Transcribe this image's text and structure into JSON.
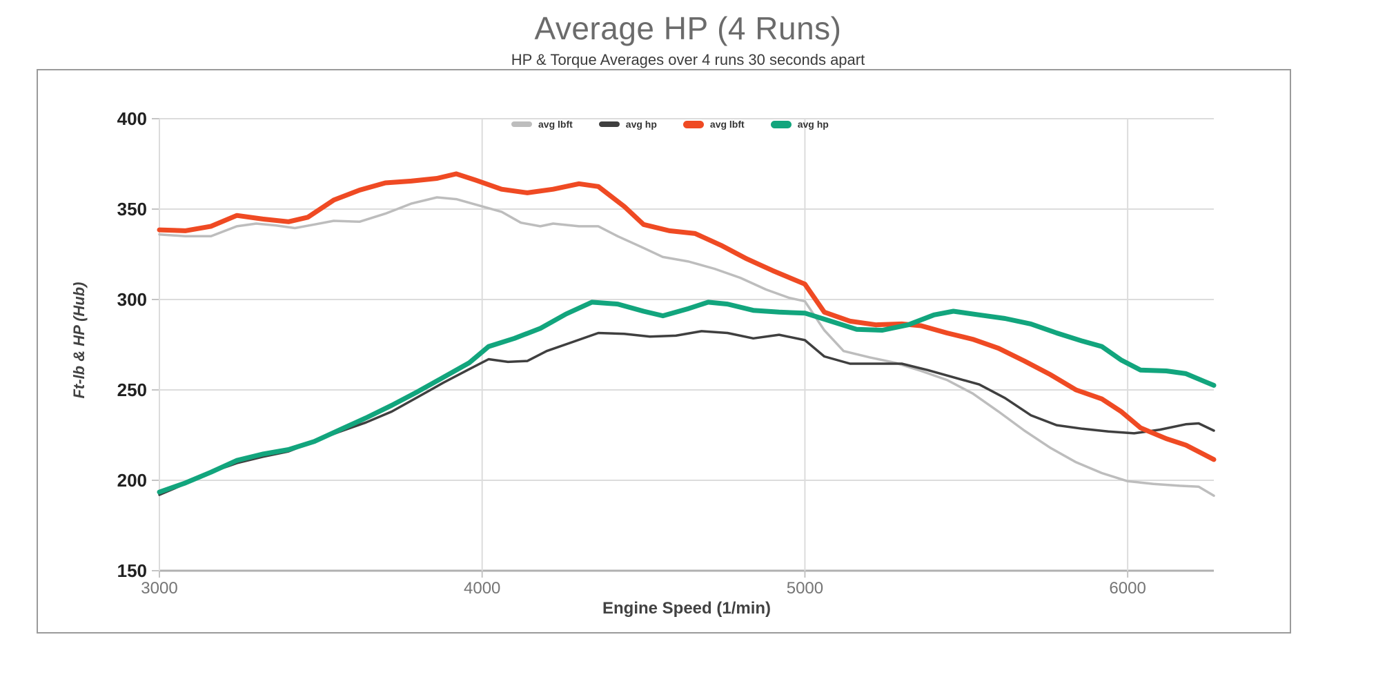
{
  "page": {
    "background": "#ffffff"
  },
  "styles": {
    "title_color": "#6b6b6b",
    "subtitle_color": "#3b3b3b",
    "border_color": "#9a9a9a",
    "grid_color": "#dcdcdc",
    "axis_line_color": "#b0b0b0",
    "tick_color": "#c4c4c4",
    "y_tick_label_color": "#212121",
    "x_tick_label_color": "#757575",
    "axis_title_color": "#424242",
    "legend_label_color": "#353535"
  },
  "chart_data": {
    "type": "line",
    "title": "Average HP (4 Runs)",
    "subtitle": "HP & Torque Averages over 4 runs 30 seconds apart",
    "xlabel": "Engine Speed (1/min)",
    "ylabel": "Ft-lb & HP (Hub)",
    "xlim": [
      3000,
      6267
    ],
    "ylim": [
      150,
      400
    ],
    "x_ticks": [
      3000,
      4000,
      5000,
      6000
    ],
    "y_ticks": [
      400,
      350,
      300,
      250,
      200,
      150
    ],
    "grid": true,
    "legend_position": "top-center",
    "series": [
      {
        "name": "avg lbft",
        "color": "#BDBDBD",
        "line_width": 3.5,
        "points": [
          [
            3000,
            336
          ],
          [
            3080,
            335
          ],
          [
            3160,
            335
          ],
          [
            3240,
            340.5
          ],
          [
            3300,
            342
          ],
          [
            3360,
            341
          ],
          [
            3420,
            339.5
          ],
          [
            3480,
            341.5
          ],
          [
            3540,
            343.5
          ],
          [
            3620,
            343
          ],
          [
            3700,
            347.5
          ],
          [
            3780,
            353
          ],
          [
            3860,
            356.5
          ],
          [
            3920,
            355.5
          ],
          [
            4000,
            351.5
          ],
          [
            4060,
            348.5
          ],
          [
            4120,
            342.5
          ],
          [
            4180,
            340.5
          ],
          [
            4220,
            342
          ],
          [
            4300,
            340.5
          ],
          [
            4360,
            340.5
          ],
          [
            4420,
            335
          ],
          [
            4500,
            328.5
          ],
          [
            4560,
            323.5
          ],
          [
            4640,
            321
          ],
          [
            4720,
            317
          ],
          [
            4800,
            312
          ],
          [
            4880,
            305.5
          ],
          [
            4950,
            301
          ],
          [
            5000,
            299
          ],
          [
            5060,
            283
          ],
          [
            5120,
            271.5
          ],
          [
            5200,
            268
          ],
          [
            5280,
            265
          ],
          [
            5360,
            260.5
          ],
          [
            5440,
            255.5
          ],
          [
            5520,
            248
          ],
          [
            5600,
            238
          ],
          [
            5680,
            227.5
          ],
          [
            5760,
            218
          ],
          [
            5840,
            210
          ],
          [
            5920,
            204
          ],
          [
            6000,
            199.5
          ],
          [
            6080,
            198
          ],
          [
            6160,
            197
          ],
          [
            6220,
            196.5
          ],
          [
            6267,
            191.5
          ]
        ]
      },
      {
        "name": "avg hp",
        "color": "#3F3F3F",
        "line_width": 3.5,
        "points": [
          [
            3000,
            192
          ],
          [
            3080,
            198
          ],
          [
            3160,
            204.5
          ],
          [
            3240,
            209.5
          ],
          [
            3320,
            213
          ],
          [
            3400,
            216
          ],
          [
            3480,
            221.5
          ],
          [
            3560,
            227
          ],
          [
            3640,
            232
          ],
          [
            3720,
            238
          ],
          [
            3800,
            246
          ],
          [
            3880,
            254
          ],
          [
            3960,
            261.5
          ],
          [
            4020,
            267
          ],
          [
            4080,
            265.5
          ],
          [
            4140,
            266
          ],
          [
            4200,
            271.5
          ],
          [
            4280,
            276.5
          ],
          [
            4360,
            281.5
          ],
          [
            4440,
            281
          ],
          [
            4520,
            279.5
          ],
          [
            4600,
            280
          ],
          [
            4680,
            282.5
          ],
          [
            4760,
            281.5
          ],
          [
            4840,
            278.5
          ],
          [
            4920,
            280.5
          ],
          [
            5000,
            277.5
          ],
          [
            5060,
            268.5
          ],
          [
            5140,
            264.5
          ],
          [
            5220,
            264.5
          ],
          [
            5300,
            264.5
          ],
          [
            5380,
            261
          ],
          [
            5460,
            257
          ],
          [
            5540,
            253
          ],
          [
            5620,
            245.5
          ],
          [
            5700,
            236
          ],
          [
            5780,
            230.5
          ],
          [
            5860,
            228.5
          ],
          [
            5940,
            227
          ],
          [
            6020,
            226
          ],
          [
            6100,
            228
          ],
          [
            6180,
            231
          ],
          [
            6220,
            231.5
          ],
          [
            6267,
            227.5
          ]
        ]
      },
      {
        "name": "avg lbft",
        "color": "#EF4A23",
        "line_width": 7,
        "points": [
          [
            3000,
            338.5
          ],
          [
            3080,
            338
          ],
          [
            3160,
            340.5
          ],
          [
            3240,
            346.5
          ],
          [
            3320,
            344.5
          ],
          [
            3400,
            343
          ],
          [
            3460,
            345.5
          ],
          [
            3540,
            355
          ],
          [
            3620,
            360.5
          ],
          [
            3700,
            364.5
          ],
          [
            3780,
            365.5
          ],
          [
            3860,
            367
          ],
          [
            3920,
            369.5
          ],
          [
            3980,
            366
          ],
          [
            4060,
            361
          ],
          [
            4140,
            359
          ],
          [
            4220,
            361
          ],
          [
            4300,
            364
          ],
          [
            4360,
            362.5
          ],
          [
            4440,
            351.5
          ],
          [
            4500,
            341.5
          ],
          [
            4580,
            338
          ],
          [
            4660,
            336.5
          ],
          [
            4740,
            330
          ],
          [
            4820,
            322.5
          ],
          [
            4900,
            316
          ],
          [
            5000,
            308.5
          ],
          [
            5060,
            293
          ],
          [
            5140,
            288
          ],
          [
            5220,
            286
          ],
          [
            5300,
            286.5
          ],
          [
            5360,
            285.5
          ],
          [
            5440,
            281.5
          ],
          [
            5520,
            278
          ],
          [
            5600,
            273
          ],
          [
            5680,
            266
          ],
          [
            5760,
            258.5
          ],
          [
            5840,
            250
          ],
          [
            5920,
            245
          ],
          [
            5980,
            238
          ],
          [
            6040,
            229
          ],
          [
            6120,
            223
          ],
          [
            6180,
            219.5
          ],
          [
            6267,
            211.5
          ]
        ]
      },
      {
        "name": "avg hp",
        "color": "#12A57D",
        "line_width": 7,
        "points": [
          [
            3000,
            193.5
          ],
          [
            3080,
            198.5
          ],
          [
            3160,
            204.5
          ],
          [
            3240,
            211
          ],
          [
            3320,
            214.5
          ],
          [
            3400,
            217
          ],
          [
            3480,
            221.5
          ],
          [
            3560,
            228
          ],
          [
            3640,
            234.5
          ],
          [
            3720,
            241.5
          ],
          [
            3800,
            249
          ],
          [
            3880,
            257
          ],
          [
            3960,
            265
          ],
          [
            4020,
            274
          ],
          [
            4100,
            278.5
          ],
          [
            4180,
            284
          ],
          [
            4260,
            292
          ],
          [
            4340,
            298.5
          ],
          [
            4420,
            297.5
          ],
          [
            4500,
            293.5
          ],
          [
            4560,
            291
          ],
          [
            4640,
            295
          ],
          [
            4700,
            298.5
          ],
          [
            4760,
            297.5
          ],
          [
            4840,
            294
          ],
          [
            4920,
            293
          ],
          [
            5000,
            292.5
          ],
          [
            5080,
            288
          ],
          [
            5160,
            283.5
          ],
          [
            5240,
            283
          ],
          [
            5320,
            286
          ],
          [
            5400,
            291.5
          ],
          [
            5460,
            293.5
          ],
          [
            5540,
            291.5
          ],
          [
            5620,
            289.5
          ],
          [
            5700,
            286.5
          ],
          [
            5780,
            281.5
          ],
          [
            5860,
            277
          ],
          [
            5920,
            274
          ],
          [
            5980,
            266.5
          ],
          [
            6040,
            261
          ],
          [
            6120,
            260.5
          ],
          [
            6180,
            259
          ],
          [
            6240,
            254.5
          ],
          [
            6267,
            252.5
          ]
        ]
      }
    ]
  }
}
